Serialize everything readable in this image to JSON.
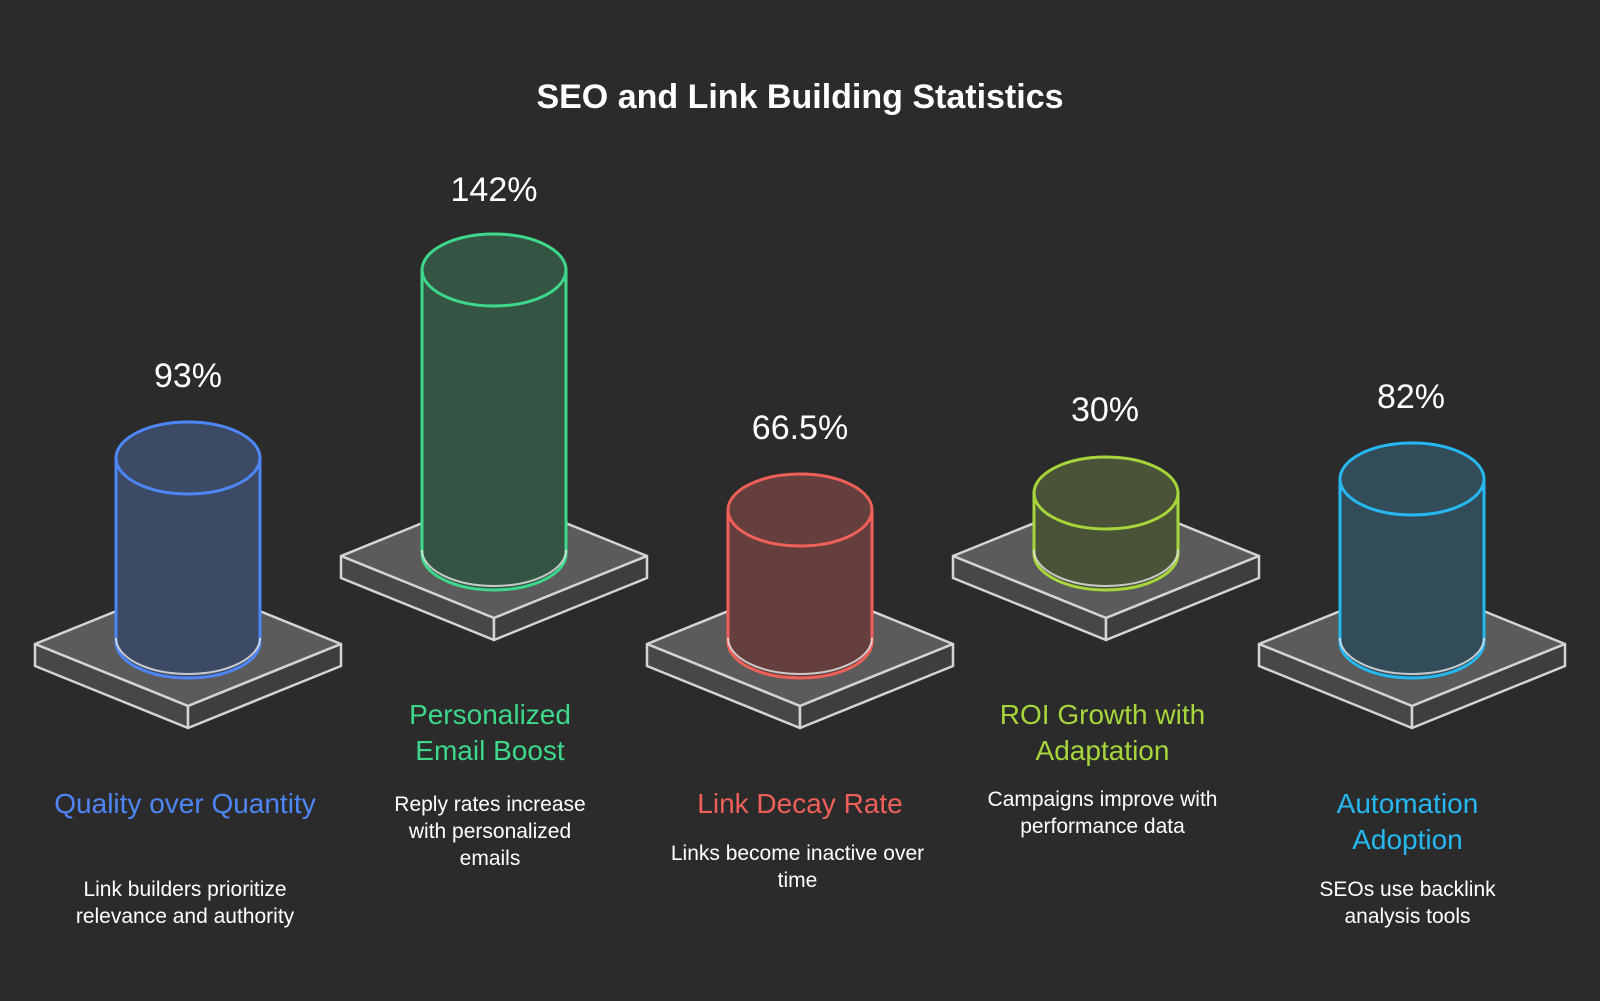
{
  "title": "SEO and Link Building Statistics",
  "items": [
    {
      "value": "93%",
      "label": "Quality over Quantity",
      "description": "Link builders prioritize relevance and authority",
      "color": "#4f86f7",
      "fill": "#3c4a66"
    },
    {
      "value": "142%",
      "label": "Personalized Email Boost",
      "description": "Reply rates increase with personalized emails",
      "color": "#3ed88a",
      "fill": "#355544"
    },
    {
      "value": "66.5%",
      "label": "Link Decay Rate",
      "description": "Links become inactive over time",
      "color": "#f0605a",
      "fill": "#653e3e"
    },
    {
      "value": "30%",
      "label": "ROI Growth with Adaptation",
      "description": "Campaigns improve with performance data",
      "color": "#a6d63b",
      "fill": "#4a5238"
    },
    {
      "value": "82%",
      "label": "Automation Adoption",
      "description": "SEOs use backlink analysis tools",
      "color": "#26b8f0",
      "fill": "#334c5a"
    }
  ]
}
